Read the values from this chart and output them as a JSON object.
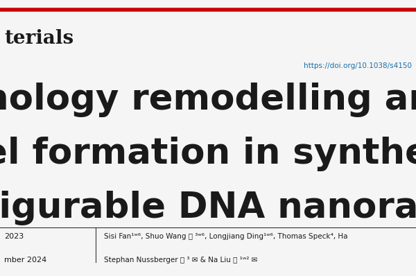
{
  "bg_color": "#f5f5f5",
  "red_line_color": "#cc0000",
  "journal_name": "terials",
  "doi_text": "https://doi.org/10.1038/s4150",
  "doi_color": "#1a6fa8",
  "title_line1": "hology remodelling and membran",
  "title_line2": "el formation in synthetic cells via r",
  "title_line3": "figurable DNA nanorafts",
  "authors_line1": "Sisi Fan¹ʷ⁶, Shuo Wang ⓞ ³ʷ⁶, Longjiang Ding¹ʷ⁶, Thomas Speck⁴, Ha",
  "authors_line2": "Stephan Nussberger ⓞ ³ ✉ & Na Liu ⓞ ¹ʷ² ✉",
  "date_line1": "2023",
  "date_line2": "mber 2024",
  "separator_color": "#333333",
  "text_color": "#1a1a1a"
}
